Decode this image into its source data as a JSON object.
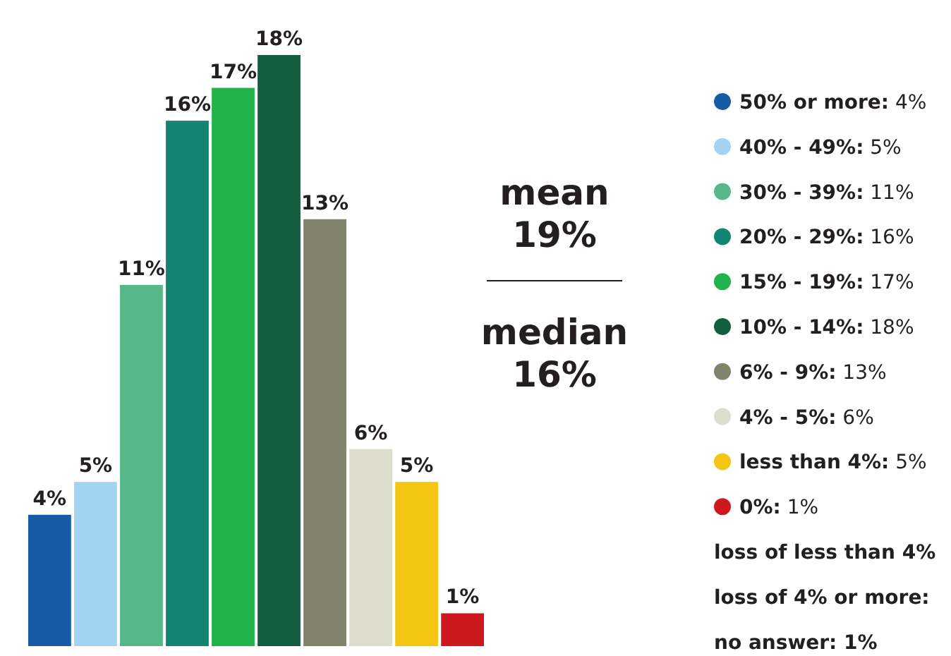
{
  "chart_data": {
    "type": "bar",
    "categories": [
      null,
      null,
      null,
      null,
      null,
      null,
      null,
      null,
      null,
      null
    ],
    "series": [
      {
        "name": "50% or more:",
        "color": "#175aa5",
        "values": [
          4,
          null,
          null,
          null,
          null,
          null,
          null,
          null,
          null,
          null
        ],
        "value_labels": [
          "4%",
          null,
          null,
          null,
          null,
          null,
          null,
          null,
          null,
          null
        ]
      },
      {
        "name": "40% - 49%:",
        "color": "#a2d4f2",
        "values": [
          null,
          5,
          null,
          null,
          null,
          null,
          null,
          null,
          null,
          null
        ],
        "value_labels": [
          null,
          "5%",
          null,
          null,
          null,
          null,
          null,
          null,
          null,
          null
        ]
      },
      {
        "name": "30% - 39%:",
        "color": "#56b788",
        "values": [
          null,
          null,
          11,
          null,
          null,
          null,
          null,
          null,
          null,
          null
        ],
        "value_labels": [
          null,
          null,
          "11%",
          null,
          null,
          null,
          null,
          null,
          null,
          null
        ]
      },
      {
        "name": "20% - 29%:",
        "color": "#128572",
        "values": [
          null,
          null,
          null,
          16,
          null,
          null,
          null,
          null,
          null,
          null
        ],
        "value_labels": [
          null,
          null,
          null,
          "16%",
          null,
          null,
          null,
          null,
          null,
          null
        ]
      },
      {
        "name": "15% - 19%:",
        "color": "#21b24b",
        "values": [
          null,
          null,
          null,
          null,
          17,
          null,
          null,
          null,
          null,
          null
        ],
        "value_labels": [
          null,
          null,
          null,
          null,
          "17%",
          null,
          null,
          null,
          null,
          null
        ]
      },
      {
        "name": "10% - 14%:",
        "color": "#125e3e",
        "values": [
          null,
          null,
          null,
          null,
          null,
          18,
          null,
          null,
          null,
          null
        ],
        "value_labels": [
          null,
          null,
          null,
          null,
          null,
          "18%",
          null,
          null,
          null,
          null
        ]
      },
      {
        "name": "6% - 9%:",
        "color": "#82836b",
        "values": [
          null,
          null,
          null,
          null,
          null,
          null,
          13,
          null,
          null,
          null
        ],
        "value_labels": [
          null,
          null,
          null,
          null,
          null,
          null,
          "13%",
          null,
          null,
          null
        ]
      },
      {
        "name": "4% - 5%:",
        "color": "#dcddcc",
        "values": [
          null,
          null,
          null,
          null,
          null,
          null,
          null,
          6,
          null,
          null
        ],
        "value_labels": [
          null,
          null,
          null,
          null,
          null,
          null,
          null,
          "6%",
          null,
          null
        ]
      },
      {
        "name": "less than 4%:",
        "color": "#f3c614",
        "values": [
          null,
          null,
          null,
          null,
          null,
          null,
          null,
          null,
          5,
          null
        ],
        "value_labels": [
          null,
          null,
          null,
          null,
          null,
          null,
          null,
          null,
          "5%",
          null
        ]
      },
      {
        "name": "0%:",
        "color": "#cd1820",
        "values": [
          null,
          null,
          null,
          null,
          null,
          null,
          null,
          null,
          null,
          1
        ],
        "value_labels": [
          null,
          null,
          null,
          null,
          null,
          null,
          null,
          null,
          null,
          "1%"
        ]
      }
    ],
    "stacked": true,
    "legend": "right",
    "annotations": [
      "mean 19%",
      "median 16%",
      "loss of less than 4%",
      "loss of 4% or more:",
      "no answer: 1%"
    ]
  }
}
